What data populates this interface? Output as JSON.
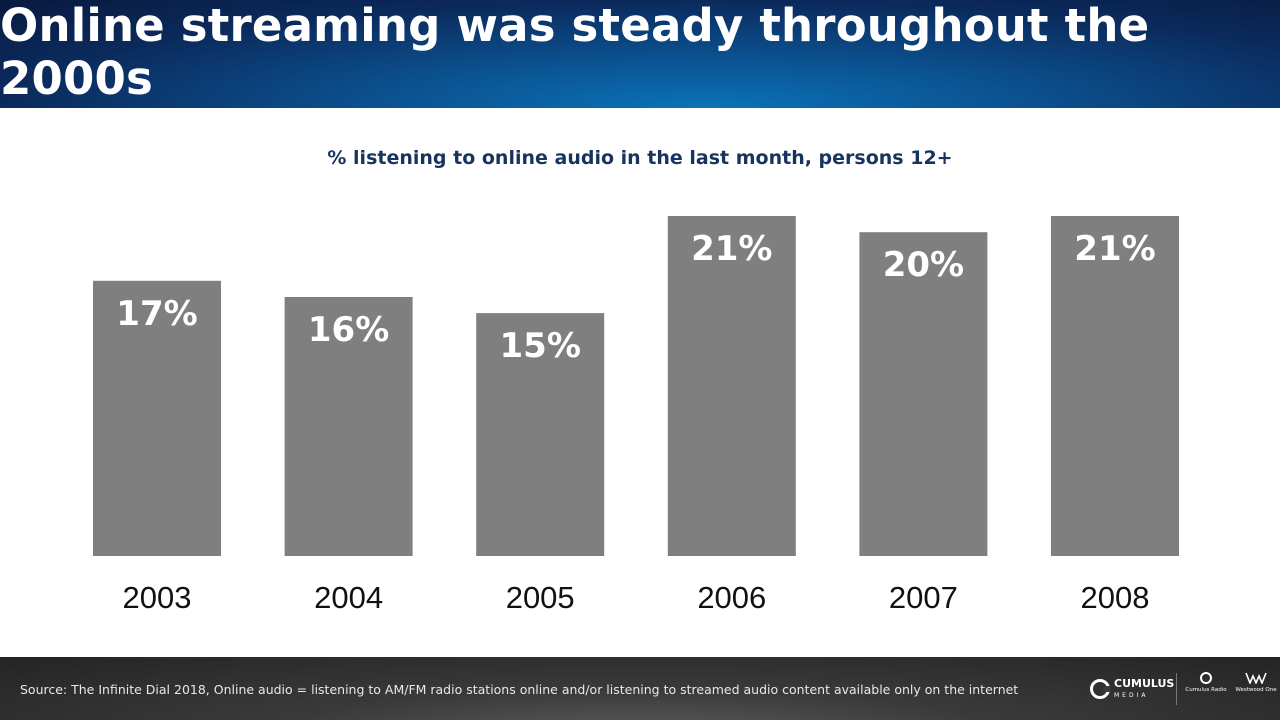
{
  "header": {
    "title": "Online streaming was steady throughout the 2000s"
  },
  "chart_data": {
    "type": "bar",
    "title": "% listening to online audio in the last month, persons 12+",
    "categories": [
      "2003",
      "2004",
      "2005",
      "2006",
      "2007",
      "2008"
    ],
    "values": [
      17,
      16,
      15,
      21,
      20,
      21
    ],
    "value_labels": [
      "17%",
      "16%",
      "15%",
      "21%",
      "20%",
      "21%"
    ],
    "xlabel": "",
    "ylabel": "",
    "ylim": [
      0,
      21
    ],
    "grid": false,
    "legend": "none",
    "bar_color": "#7f7f7f",
    "label_color": "#ffffff"
  },
  "footer": {
    "source": "Source: The Infinite Dial 2018, Online audio = listening to AM/FM  radio stations online and/or listening to streamed audio content available only on the internet",
    "logos": {
      "cumulus": "CUMULUS",
      "cumulus_sub": "MEDIA",
      "radio": "Cumulus Radio",
      "westwood": "Westwood One"
    }
  }
}
